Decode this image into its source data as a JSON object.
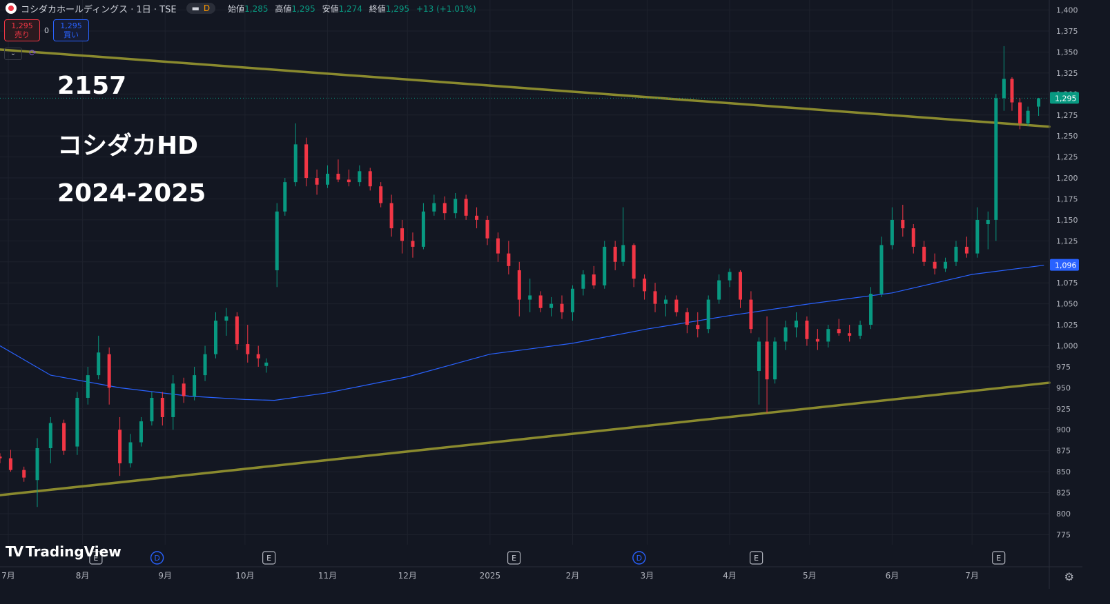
{
  "header": {
    "title": "コシダカホールディングス · 1日 · TSE",
    "timeframe_badge": "D",
    "ohlc": [
      {
        "label": "始値",
        "value": "1,285"
      },
      {
        "label": "高値",
        "value": "1,295"
      },
      {
        "label": "安値",
        "value": "1,274"
      },
      {
        "label": "終値",
        "value": "1,295"
      },
      {
        "label": "",
        "value": "+13 (+1.01%)"
      }
    ]
  },
  "trade": {
    "sell_price": "1,295",
    "sell_label": "売り",
    "spread": "0",
    "buy_price": "1,295",
    "buy_label": "買い"
  },
  "annotations": {
    "code": "2157",
    "name": "コシダカHD",
    "period": "2024-2025"
  },
  "branding": {
    "text": "TradingView"
  },
  "colors": {
    "up": "#089981",
    "down": "#f23645",
    "ma": "#2962ff",
    "trendline": "#8a8a2e",
    "bg": "#131722",
    "last_price": "#089981",
    "ma_badge": "#2962ff"
  },
  "chart_data": {
    "type": "candlestick",
    "y_axis": {
      "ticks": [
        775,
        800,
        825,
        850,
        875,
        900,
        925,
        950,
        975,
        1000,
        1025,
        1050,
        1075,
        1100,
        1125,
        1150,
        1175,
        1200,
        1225,
        1250,
        1275,
        1300,
        1325,
        1350,
        1375,
        1400
      ],
      "labels": [
        "775",
        "800",
        "825",
        "850",
        "875",
        "900",
        "925",
        "950",
        "975",
        "1,000",
        "1,025",
        "1,050",
        "1,075",
        "1,100",
        "1,125",
        "1,150",
        "1,175",
        "1,200",
        "1,225",
        "1,250",
        "1,275",
        "1,300",
        "1,325",
        "1,350",
        "1,375",
        "1,400"
      ],
      "range": [
        763,
        1412
      ]
    },
    "x_axis": {
      "labels": [
        "7月",
        "8月",
        "9月",
        "10月",
        "11月",
        "12月",
        "2025",
        "2月",
        "3月",
        "4月",
        "5月",
        "6月",
        "7月"
      ],
      "start": "2024-07-01",
      "end": "2025-07-30"
    },
    "events": [
      {
        "type": "E",
        "date": "2024-08-06"
      },
      {
        "type": "D",
        "date": "2024-08-29"
      },
      {
        "type": "E",
        "date": "2024-10-10"
      },
      {
        "type": "E",
        "date": "2025-01-10"
      },
      {
        "type": "D",
        "date": "2025-02-26"
      },
      {
        "type": "E",
        "date": "2025-04-11"
      },
      {
        "type": "E",
        "date": "2025-07-11"
      }
    ],
    "trendlines": [
      {
        "start": [
          "2024-07-01",
          1353
        ],
        "end": [
          "2025-07-30",
          1261
        ]
      },
      {
        "start": [
          "2024-07-01",
          822
        ],
        "end": [
          "2025-07-30",
          956
        ]
      }
    ],
    "moving_average": {
      "points": [
        [
          "2024-07-01",
          1000
        ],
        [
          "2024-07-20",
          965
        ],
        [
          "2024-08-15",
          950
        ],
        [
          "2024-09-10",
          940
        ],
        [
          "2024-10-01",
          936
        ],
        [
          "2024-10-12",
          935
        ],
        [
          "2024-11-01",
          944
        ],
        [
          "2024-12-01",
          963
        ],
        [
          "2025-01-01",
          990
        ],
        [
          "2025-02-01",
          1003
        ],
        [
          "2025-03-01",
          1020
        ],
        [
          "2025-04-01",
          1036
        ],
        [
          "2025-05-01",
          1050
        ],
        [
          "2025-06-01",
          1063
        ],
        [
          "2025-07-01",
          1085
        ],
        [
          "2025-07-28",
          1096
        ]
      ]
    },
    "last_price": {
      "value": 1295,
      "label": "1,295"
    },
    "ma_last": {
      "value": 1096,
      "label": "1,096"
    },
    "candles": [
      {
        "d": "2024-07-01",
        "o": 868,
        "h": 872,
        "l": 860,
        "c": 866
      },
      {
        "d": "2024-07-05",
        "o": 866,
        "h": 876,
        "l": 850,
        "c": 852
      },
      {
        "d": "2024-07-10",
        "o": 852,
        "h": 856,
        "l": 838,
        "c": 843
      },
      {
        "d": "2024-07-15",
        "o": 840,
        "h": 890,
        "l": 808,
        "c": 878
      },
      {
        "d": "2024-07-20",
        "o": 878,
        "h": 915,
        "l": 860,
        "c": 908
      },
      {
        "d": "2024-07-25",
        "o": 908,
        "h": 912,
        "l": 870,
        "c": 875
      },
      {
        "d": "2024-07-30",
        "o": 880,
        "h": 945,
        "l": 870,
        "c": 938
      },
      {
        "d": "2024-08-03",
        "o": 938,
        "h": 975,
        "l": 930,
        "c": 965
      },
      {
        "d": "2024-08-07",
        "o": 965,
        "h": 1012,
        "l": 960,
        "c": 992
      },
      {
        "d": "2024-08-11",
        "o": 990,
        "h": 998,
        "l": 930,
        "c": 950
      },
      {
        "d": "2024-08-15",
        "o": 900,
        "h": 915,
        "l": 845,
        "c": 860
      },
      {
        "d": "2024-08-19",
        "o": 860,
        "h": 895,
        "l": 855,
        "c": 885
      },
      {
        "d": "2024-08-23",
        "o": 885,
        "h": 915,
        "l": 880,
        "c": 910
      },
      {
        "d": "2024-08-27",
        "o": 910,
        "h": 945,
        "l": 905,
        "c": 938
      },
      {
        "d": "2024-08-31",
        "o": 938,
        "h": 945,
        "l": 905,
        "c": 915
      },
      {
        "d": "2024-09-04",
        "o": 915,
        "h": 965,
        "l": 900,
        "c": 955
      },
      {
        "d": "2024-09-08",
        "o": 955,
        "h": 962,
        "l": 932,
        "c": 940
      },
      {
        "d": "2024-09-12",
        "o": 940,
        "h": 975,
        "l": 935,
        "c": 965
      },
      {
        "d": "2024-09-16",
        "o": 965,
        "h": 1000,
        "l": 958,
        "c": 990
      },
      {
        "d": "2024-09-20",
        "o": 990,
        "h": 1040,
        "l": 985,
        "c": 1030
      },
      {
        "d": "2024-09-24",
        "o": 1030,
        "h": 1045,
        "l": 1012,
        "c": 1035
      },
      {
        "d": "2024-09-28",
        "o": 1035,
        "h": 1040,
        "l": 995,
        "c": 1002
      },
      {
        "d": "2024-10-02",
        "o": 1002,
        "h": 1025,
        "l": 980,
        "c": 990
      },
      {
        "d": "2024-10-06",
        "o": 990,
        "h": 1000,
        "l": 975,
        "c": 985
      },
      {
        "d": "2024-10-09",
        "o": 976,
        "h": 985,
        "l": 968,
        "c": 980
      },
      {
        "d": "2024-10-13",
        "o": 1090,
        "h": 1170,
        "l": 1070,
        "c": 1160
      },
      {
        "d": "2024-10-16",
        "o": 1160,
        "h": 1200,
        "l": 1155,
        "c": 1195
      },
      {
        "d": "2024-10-20",
        "o": 1195,
        "h": 1265,
        "l": 1190,
        "c": 1240
      },
      {
        "d": "2024-10-24",
        "o": 1240,
        "h": 1248,
        "l": 1190,
        "c": 1200
      },
      {
        "d": "2024-10-28",
        "o": 1200,
        "h": 1210,
        "l": 1180,
        "c": 1192
      },
      {
        "d": "2024-11-01",
        "o": 1192,
        "h": 1215,
        "l": 1188,
        "c": 1205
      },
      {
        "d": "2024-11-05",
        "o": 1205,
        "h": 1222,
        "l": 1195,
        "c": 1198
      },
      {
        "d": "2024-11-09",
        "o": 1198,
        "h": 1210,
        "l": 1190,
        "c": 1195
      },
      {
        "d": "2024-11-13",
        "o": 1195,
        "h": 1215,
        "l": 1190,
        "c": 1208
      },
      {
        "d": "2024-11-17",
        "o": 1208,
        "h": 1212,
        "l": 1185,
        "c": 1190
      },
      {
        "d": "2024-11-21",
        "o": 1190,
        "h": 1195,
        "l": 1165,
        "c": 1170
      },
      {
        "d": "2024-11-25",
        "o": 1170,
        "h": 1180,
        "l": 1130,
        "c": 1140
      },
      {
        "d": "2024-11-29",
        "o": 1140,
        "h": 1150,
        "l": 1110,
        "c": 1125
      },
      {
        "d": "2024-12-03",
        "o": 1125,
        "h": 1135,
        "l": 1105,
        "c": 1118
      },
      {
        "d": "2024-12-07",
        "o": 1118,
        "h": 1170,
        "l": 1115,
        "c": 1160
      },
      {
        "d": "2024-12-11",
        "o": 1160,
        "h": 1180,
        "l": 1155,
        "c": 1170
      },
      {
        "d": "2024-12-15",
        "o": 1170,
        "h": 1178,
        "l": 1150,
        "c": 1158
      },
      {
        "d": "2024-12-19",
        "o": 1158,
        "h": 1182,
        "l": 1152,
        "c": 1175
      },
      {
        "d": "2024-12-23",
        "o": 1175,
        "h": 1180,
        "l": 1150,
        "c": 1155
      },
      {
        "d": "2024-12-27",
        "o": 1155,
        "h": 1165,
        "l": 1140,
        "c": 1150
      },
      {
        "d": "2024-12-31",
        "o": 1150,
        "h": 1155,
        "l": 1120,
        "c": 1128
      },
      {
        "d": "2025-01-04",
        "o": 1128,
        "h": 1135,
        "l": 1100,
        "c": 1110
      },
      {
        "d": "2025-01-08",
        "o": 1110,
        "h": 1125,
        "l": 1085,
        "c": 1095
      },
      {
        "d": "2025-01-12",
        "o": 1090,
        "h": 1100,
        "l": 1035,
        "c": 1055
      },
      {
        "d": "2025-01-16",
        "o": 1055,
        "h": 1080,
        "l": 1040,
        "c": 1060
      },
      {
        "d": "2025-01-20",
        "o": 1060,
        "h": 1065,
        "l": 1040,
        "c": 1045
      },
      {
        "d": "2025-01-24",
        "o": 1045,
        "h": 1058,
        "l": 1035,
        "c": 1050
      },
      {
        "d": "2025-01-28",
        "o": 1050,
        "h": 1060,
        "l": 1032,
        "c": 1040
      },
      {
        "d": "2025-02-01",
        "o": 1040,
        "h": 1072,
        "l": 1030,
        "c": 1068
      },
      {
        "d": "2025-02-05",
        "o": 1068,
        "h": 1090,
        "l": 1060,
        "c": 1085
      },
      {
        "d": "2025-02-09",
        "o": 1085,
        "h": 1095,
        "l": 1068,
        "c": 1072
      },
      {
        "d": "2025-02-13",
        "o": 1072,
        "h": 1125,
        "l": 1068,
        "c": 1118
      },
      {
        "d": "2025-02-17",
        "o": 1118,
        "h": 1125,
        "l": 1090,
        "c": 1100
      },
      {
        "d": "2025-02-20",
        "o": 1100,
        "h": 1165,
        "l": 1095,
        "c": 1120
      },
      {
        "d": "2025-02-24",
        "o": 1120,
        "h": 1122,
        "l": 1070,
        "c": 1080
      },
      {
        "d": "2025-02-28",
        "o": 1080,
        "h": 1085,
        "l": 1055,
        "c": 1065
      },
      {
        "d": "2025-03-04",
        "o": 1065,
        "h": 1075,
        "l": 1040,
        "c": 1050
      },
      {
        "d": "2025-03-08",
        "o": 1050,
        "h": 1060,
        "l": 1035,
        "c": 1055
      },
      {
        "d": "2025-03-12",
        "o": 1055,
        "h": 1060,
        "l": 1035,
        "c": 1040
      },
      {
        "d": "2025-03-16",
        "o": 1040,
        "h": 1045,
        "l": 1015,
        "c": 1025
      },
      {
        "d": "2025-03-20",
        "o": 1025,
        "h": 1040,
        "l": 1010,
        "c": 1020
      },
      {
        "d": "2025-03-24",
        "o": 1020,
        "h": 1060,
        "l": 1015,
        "c": 1055
      },
      {
        "d": "2025-03-28",
        "o": 1055,
        "h": 1085,
        "l": 1050,
        "c": 1078
      },
      {
        "d": "2025-04-01",
        "o": 1078,
        "h": 1092,
        "l": 1070,
        "c": 1088
      },
      {
        "d": "2025-04-05",
        "o": 1088,
        "h": 1090,
        "l": 1045,
        "c": 1055
      },
      {
        "d": "2025-04-09",
        "o": 1055,
        "h": 1065,
        "l": 1015,
        "c": 1020
      },
      {
        "d": "2025-04-12",
        "o": 970,
        "h": 1010,
        "l": 930,
        "c": 1005
      },
      {
        "d": "2025-04-15",
        "o": 1005,
        "h": 1035,
        "l": 920,
        "c": 960
      },
      {
        "d": "2025-04-18",
        "o": 960,
        "h": 1010,
        "l": 955,
        "c": 1005
      },
      {
        "d": "2025-04-22",
        "o": 1005,
        "h": 1030,
        "l": 995,
        "c": 1022
      },
      {
        "d": "2025-04-26",
        "o": 1022,
        "h": 1040,
        "l": 1010,
        "c": 1030
      },
      {
        "d": "2025-04-30",
        "o": 1030,
        "h": 1035,
        "l": 1000,
        "c": 1008
      },
      {
        "d": "2025-05-04",
        "o": 1008,
        "h": 1020,
        "l": 995,
        "c": 1005
      },
      {
        "d": "2025-05-08",
        "o": 1005,
        "h": 1025,
        "l": 998,
        "c": 1020
      },
      {
        "d": "2025-05-12",
        "o": 1020,
        "h": 1032,
        "l": 1012,
        "c": 1015
      },
      {
        "d": "2025-05-16",
        "o": 1015,
        "h": 1025,
        "l": 1005,
        "c": 1012
      },
      {
        "d": "2025-05-20",
        "o": 1012,
        "h": 1030,
        "l": 1008,
        "c": 1025
      },
      {
        "d": "2025-05-24",
        "o": 1025,
        "h": 1070,
        "l": 1020,
        "c": 1062
      },
      {
        "d": "2025-05-28",
        "o": 1062,
        "h": 1130,
        "l": 1058,
        "c": 1120
      },
      {
        "d": "2025-06-01",
        "o": 1120,
        "h": 1165,
        "l": 1115,
        "c": 1150
      },
      {
        "d": "2025-06-05",
        "o": 1150,
        "h": 1168,
        "l": 1130,
        "c": 1140
      },
      {
        "d": "2025-06-09",
        "o": 1140,
        "h": 1145,
        "l": 1110,
        "c": 1118
      },
      {
        "d": "2025-06-13",
        "o": 1118,
        "h": 1125,
        "l": 1095,
        "c": 1100
      },
      {
        "d": "2025-06-17",
        "o": 1100,
        "h": 1110,
        "l": 1085,
        "c": 1092
      },
      {
        "d": "2025-06-21",
        "o": 1092,
        "h": 1105,
        "l": 1088,
        "c": 1100
      },
      {
        "d": "2025-06-25",
        "o": 1100,
        "h": 1125,
        "l": 1095,
        "c": 1118
      },
      {
        "d": "2025-06-29",
        "o": 1118,
        "h": 1130,
        "l": 1105,
        "c": 1110
      },
      {
        "d": "2025-07-03",
        "o": 1110,
        "h": 1165,
        "l": 1105,
        "c": 1150
      },
      {
        "d": "2025-07-07",
        "o": 1145,
        "h": 1160,
        "l": 1115,
        "c": 1150
      },
      {
        "d": "2025-07-10",
        "o": 1150,
        "h": 1300,
        "l": 1125,
        "c": 1295
      },
      {
        "d": "2025-07-13",
        "o": 1295,
        "h": 1357,
        "l": 1280,
        "c": 1318
      },
      {
        "d": "2025-07-16",
        "o": 1318,
        "h": 1320,
        "l": 1280,
        "c": 1290
      },
      {
        "d": "2025-07-19",
        "o": 1290,
        "h": 1295,
        "l": 1258,
        "c": 1265
      },
      {
        "d": "2025-07-22",
        "o": 1265,
        "h": 1285,
        "l": 1262,
        "c": 1280
      },
      {
        "d": "2025-07-26",
        "o": 1285,
        "h": 1295,
        "l": 1274,
        "c": 1295
      }
    ]
  }
}
